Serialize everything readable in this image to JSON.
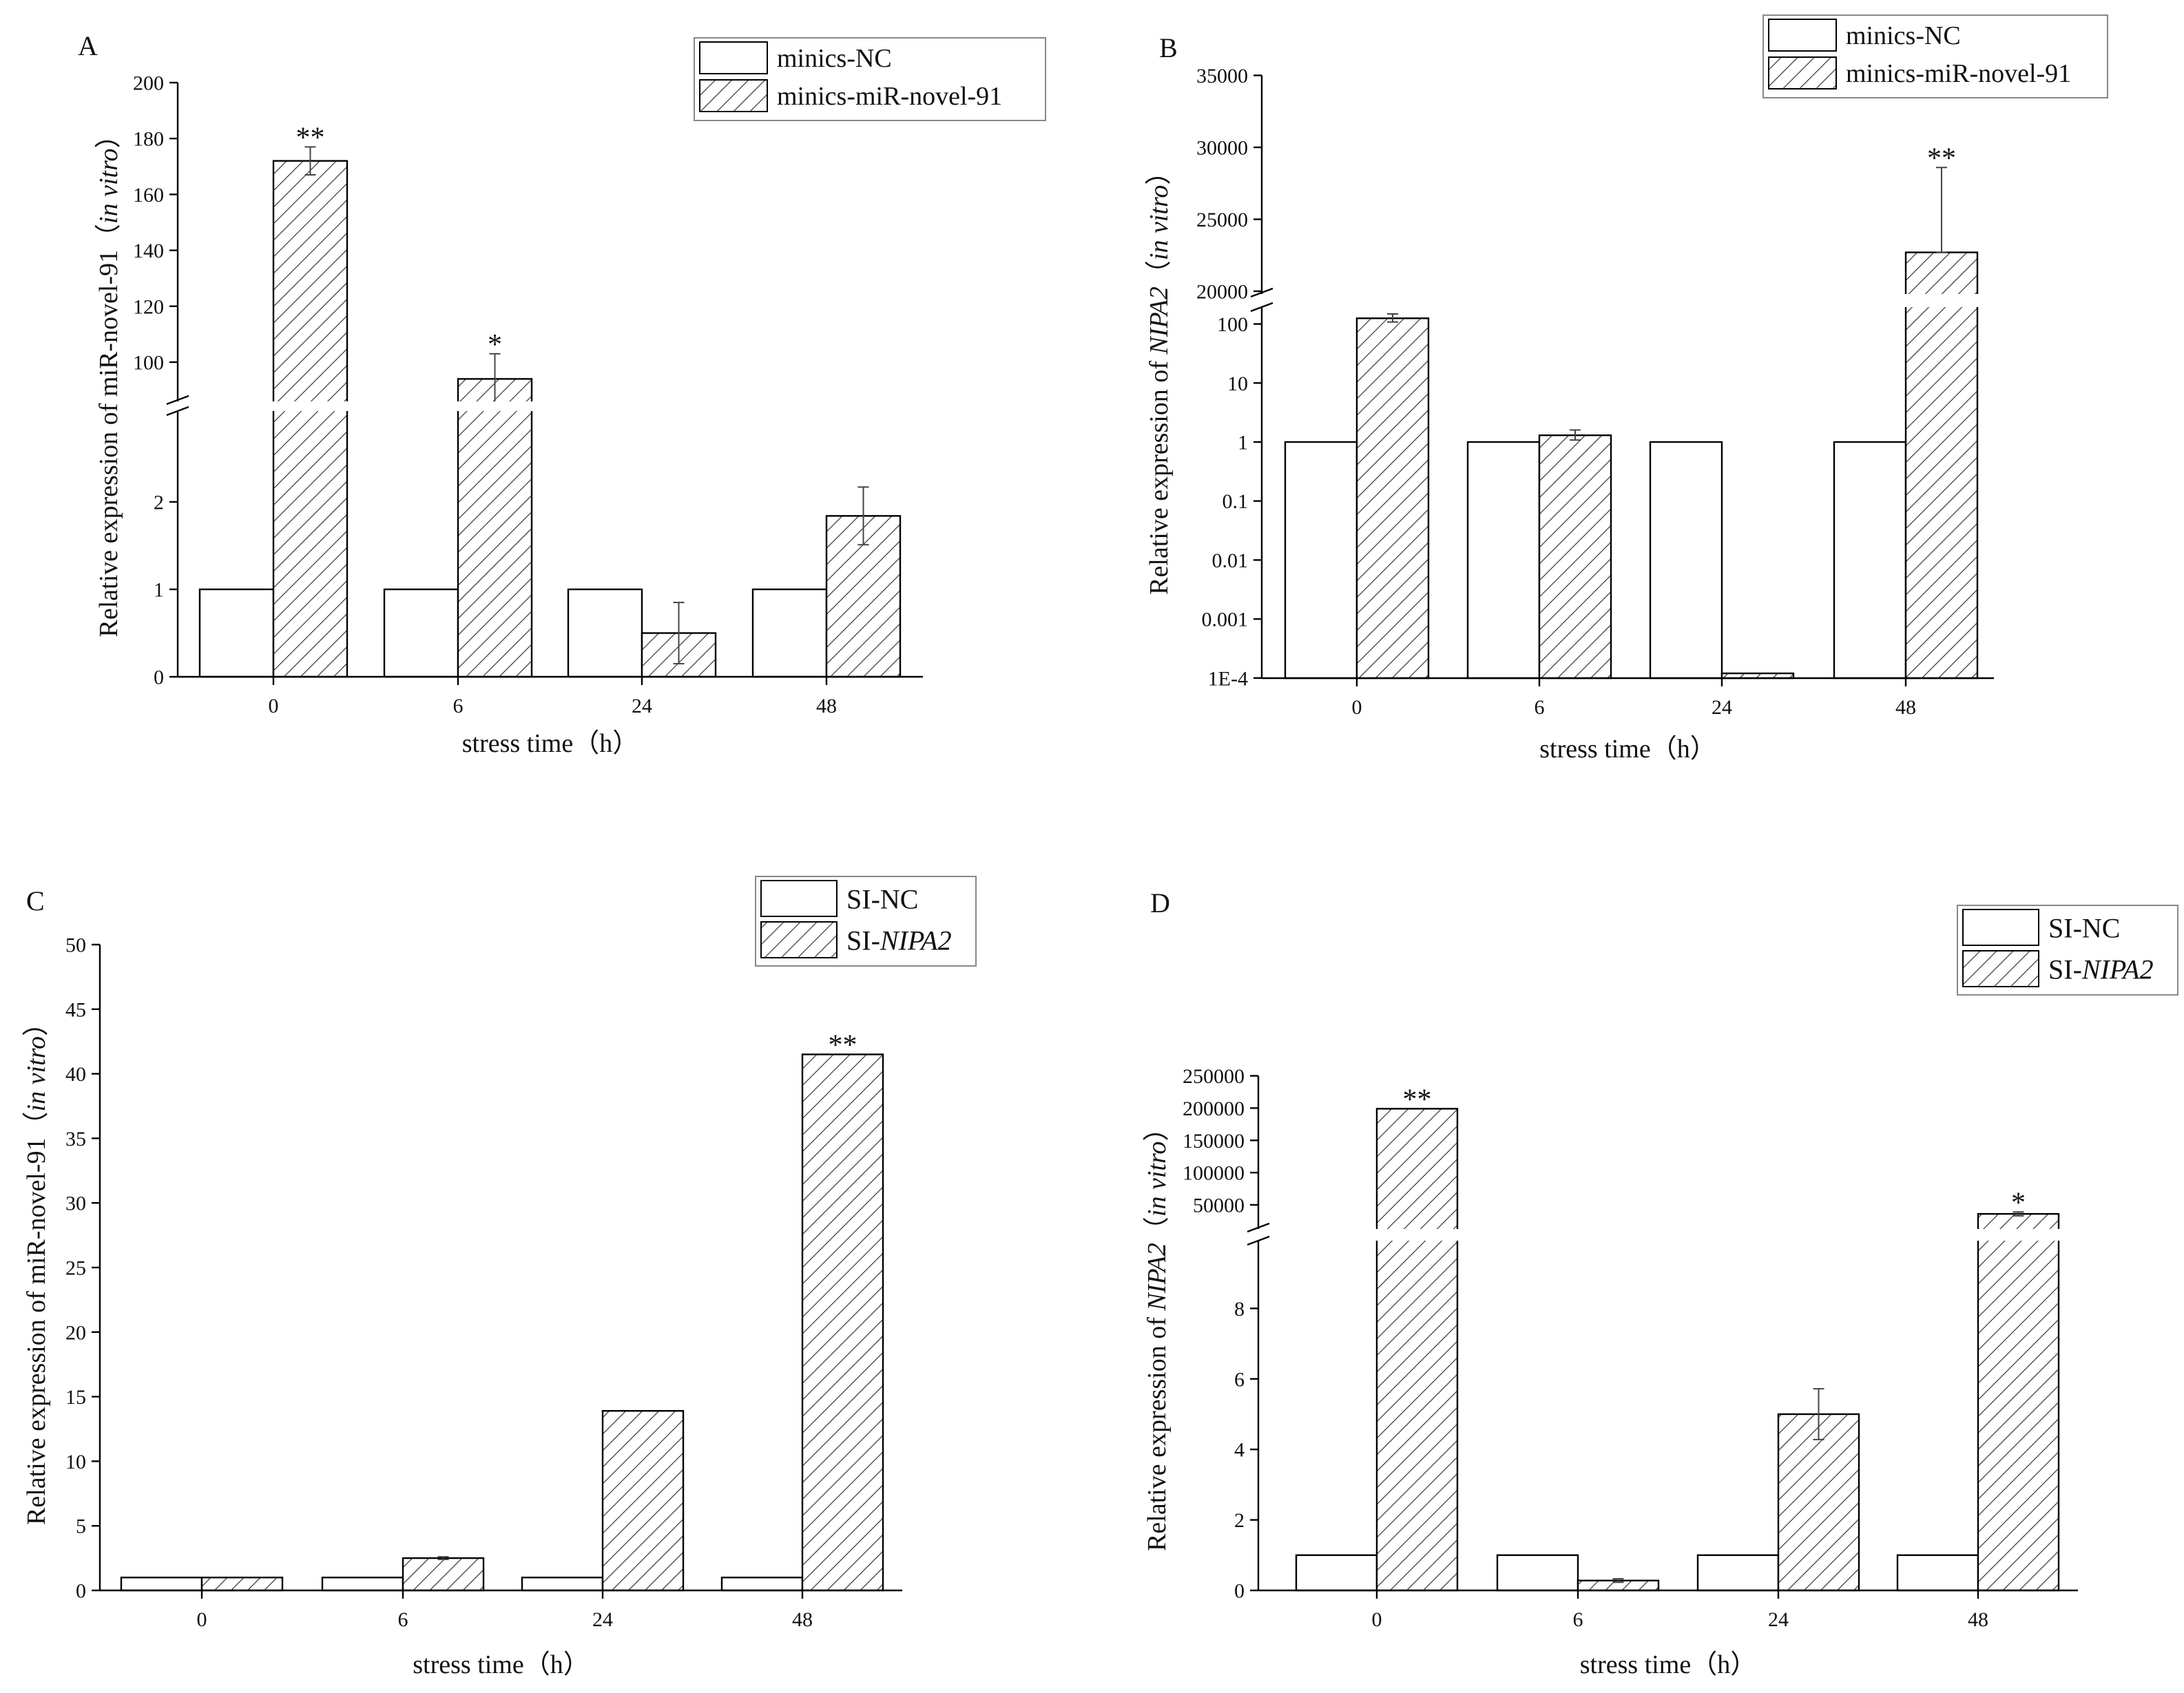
{
  "figure": {
    "hatch_color": "#333333",
    "axis_color": "#000000",
    "bar_fill": "#ffffff"
  },
  "chart_data": [
    {
      "panel": "A",
      "type": "bar",
      "categories": [
        "0",
        "6",
        "24",
        "48"
      ],
      "xlabel": "stress time（h）",
      "ylabel_parts": [
        {
          "text": "Relative expression of miR-novel-91（",
          "italic": false
        },
        {
          "text": "in vitro",
          "italic": true
        },
        {
          "text": "）",
          "italic": false
        }
      ],
      "y_scale": "broken-linear",
      "lower_ticks": [
        "0",
        "1",
        "2"
      ],
      "upper_ticks": [
        "100",
        "120",
        "140",
        "160",
        "180",
        "200"
      ],
      "legend_position": "top-right",
      "series": [
        {
          "name_parts": [
            {
              "text": "minics-NC",
              "italic": false
            }
          ],
          "pattern": "open",
          "values": [
            1,
            1,
            1,
            1
          ],
          "errors": [
            0,
            0,
            0,
            0
          ]
        },
        {
          "name_parts": [
            {
              "text": "minics-miR-novel-91",
              "italic": false
            }
          ],
          "pattern": "hatched",
          "values": [
            172,
            94,
            0.5,
            1.84
          ],
          "errors": [
            5,
            9,
            0.35,
            0.33
          ]
        }
      ],
      "significance": [
        {
          "category": "0",
          "series": 1,
          "label": "**"
        },
        {
          "category": "6",
          "series": 1,
          "label": "*"
        }
      ]
    },
    {
      "panel": "B",
      "type": "bar",
      "categories": [
        "0",
        "6",
        "24",
        "48"
      ],
      "xlabel": "stress time（h）",
      "ylabel_parts": [
        {
          "text": "Relative expression of ",
          "italic": false
        },
        {
          "text": "NIPA2",
          "italic": true
        },
        {
          "text": "（",
          "italic": false
        },
        {
          "text": "in vitro",
          "italic": true
        },
        {
          "text": "）",
          "italic": false
        }
      ],
      "y_scale": "log with linear break",
      "lower_ticks": [
        "1E-4",
        "0.001",
        "0.01",
        "0.1",
        "1",
        "10",
        "100"
      ],
      "upper_ticks": [
        "20000",
        "25000",
        "30000",
        "35000"
      ],
      "legend_position": "top-right",
      "series": [
        {
          "name_parts": [
            {
              "text": "minics-NC",
              "italic": false
            }
          ],
          "pattern": "open",
          "values": [
            1,
            1,
            1,
            1
          ]
        },
        {
          "name_parts": [
            {
              "text": "minics-miR-novel-91",
              "italic": false
            }
          ],
          "pattern": "hatched",
          "values": [
            125,
            1.3,
            0.00012,
            22700
          ]
        }
      ],
      "error_bounds": [
        {
          "category": "0",
          "series": 1,
          "low": 108,
          "high": 148
        },
        {
          "category": "6",
          "series": 1,
          "low": 1.08,
          "high": 1.6
        },
        {
          "category": "48",
          "series": 1,
          "low": 22700,
          "high": 28600
        }
      ],
      "significance": [
        {
          "category": "48",
          "series": 1,
          "label": "**"
        }
      ]
    },
    {
      "panel": "C",
      "type": "bar",
      "categories": [
        "0",
        "6",
        "24",
        "48"
      ],
      "xlabel": "stress time（h）",
      "ylabel_parts": [
        {
          "text": "Relative expression of miR-novel-91（",
          "italic": false
        },
        {
          "text": "in vitro",
          "italic": true
        },
        {
          "text": "）",
          "italic": false
        }
      ],
      "y_scale": "linear",
      "ylim": [
        0,
        50
      ],
      "ticks": [
        "0",
        "5",
        "10",
        "15",
        "20",
        "25",
        "30",
        "35",
        "40",
        "45",
        "50"
      ],
      "legend_position": "top-right",
      "series": [
        {
          "name_parts": [
            {
              "text": "SI-NC",
              "italic": false
            }
          ],
          "pattern": "open",
          "values": [
            1,
            1,
            1,
            1
          ],
          "errors": [
            0,
            0,
            0,
            0
          ]
        },
        {
          "name_parts": [
            {
              "text": "SI-",
              "italic": false
            },
            {
              "text": "NIPA2",
              "italic": true
            }
          ],
          "pattern": "hatched",
          "values": [
            1,
            2.5,
            13.9,
            41.5
          ],
          "errors": [
            0,
            0.1,
            0,
            0
          ]
        }
      ],
      "significance": [
        {
          "category": "48",
          "series": 1,
          "label": "**"
        }
      ]
    },
    {
      "panel": "D",
      "type": "bar",
      "categories": [
        "0",
        "6",
        "24",
        "48"
      ],
      "xlabel": "stress time（h）",
      "ylabel_parts": [
        {
          "text": "Relative expression of ",
          "italic": false
        },
        {
          "text": "NIPA2",
          "italic": true
        },
        {
          "text": "（",
          "italic": false
        },
        {
          "text": "in vitro",
          "italic": true
        },
        {
          "text": "）",
          "italic": false
        }
      ],
      "y_scale": "broken-linear",
      "lower_ticks": [
        "0",
        "2",
        "4",
        "6",
        "8"
      ],
      "upper_ticks": [
        "50000",
        "100000",
        "150000",
        "200000",
        "250000"
      ],
      "legend_position": "top-right",
      "series": [
        {
          "name_parts": [
            {
              "text": "SI-NC",
              "italic": false
            }
          ],
          "pattern": "open",
          "values": [
            1,
            1,
            1,
            1
          ],
          "errors": [
            0,
            0,
            0,
            0
          ]
        },
        {
          "name_parts": [
            {
              "text": "SI-",
              "italic": false
            },
            {
              "text": "NIPA2",
              "italic": true
            }
          ],
          "pattern": "hatched",
          "values": [
            199000,
            0.28,
            5,
            36000
          ],
          "errors": [
            0,
            0.05,
            0.72,
            3000
          ]
        }
      ],
      "significance": [
        {
          "category": "0",
          "series": 1,
          "label": "**"
        },
        {
          "category": "48",
          "series": 1,
          "label": "*"
        }
      ]
    }
  ]
}
